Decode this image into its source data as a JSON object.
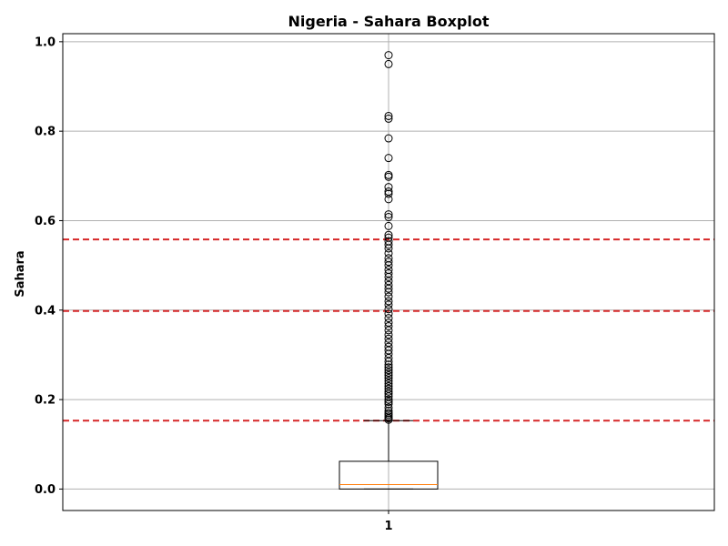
{
  "chart_data": {
    "type": "boxplot",
    "title": "Nigeria - Sahara Boxplot",
    "xlabel": "",
    "ylabel": "Sahara",
    "categories": [
      "1"
    ],
    "ylim": [
      -0.048,
      1.018
    ],
    "yticks": [
      0.0,
      0.2,
      0.4,
      0.6,
      0.8,
      1.0
    ],
    "ytick_labels": [
      "0.0",
      "0.2",
      "0.4",
      "0.6",
      "0.8",
      "1.0"
    ],
    "grid": true,
    "box": {
      "whisker_low": 0.0,
      "q1": 0.0,
      "median": 0.01,
      "q3": 0.062,
      "whisker_high": 0.153
    },
    "outliers": [
      0.155,
      0.158,
      0.162,
      0.166,
      0.17,
      0.175,
      0.182,
      0.19,
      0.195,
      0.2,
      0.207,
      0.213,
      0.218,
      0.224,
      0.23,
      0.236,
      0.242,
      0.248,
      0.254,
      0.26,
      0.266,
      0.272,
      0.278,
      0.285,
      0.293,
      0.302,
      0.31,
      0.318,
      0.327,
      0.336,
      0.345,
      0.355,
      0.364,
      0.372,
      0.382,
      0.392,
      0.402,
      0.412,
      0.42,
      0.43,
      0.44,
      0.448,
      0.456,
      0.465,
      0.474,
      0.482,
      0.49,
      0.5,
      0.508,
      0.516,
      0.527,
      0.538,
      0.546,
      0.554,
      0.562,
      0.568,
      0.588,
      0.608,
      0.614,
      0.648,
      0.66,
      0.665,
      0.675,
      0.698,
      0.702,
      0.74,
      0.784,
      0.828,
      0.834,
      0.95,
      0.97
    ],
    "reference_lines": [
      0.153,
      0.398,
      0.558
    ],
    "colors": {
      "box": "#000000",
      "median": "#ff7f0e",
      "reference": "#d62728",
      "grid": "#b0b0b0"
    }
  }
}
